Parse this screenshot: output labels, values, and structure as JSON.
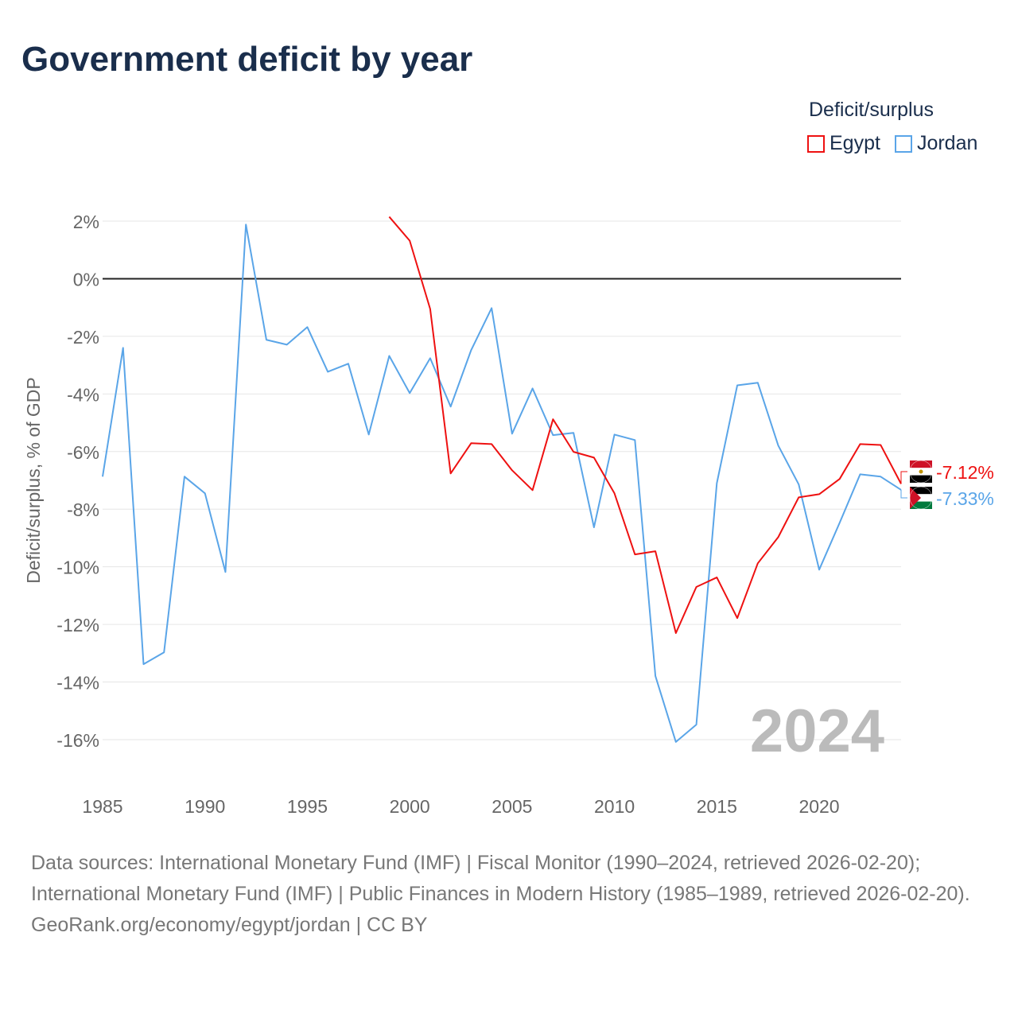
{
  "chart_data": {
    "type": "line",
    "title": "Government deficit by year",
    "ylabel": "Deficit/surplus, % of GDP",
    "xlabel": "",
    "ylim": [
      -16,
      2
    ],
    "xlim": [
      1985,
      2024
    ],
    "yticks": [
      2,
      0,
      -2,
      -4,
      -6,
      -8,
      -10,
      -12,
      -14,
      -16
    ],
    "ytick_labels": [
      "2%",
      "0%",
      "-2%",
      "-4%",
      "-6%",
      "-8%",
      "-10%",
      "-12%",
      "-14%",
      "-16%"
    ],
    "xticks": [
      1985,
      1990,
      1995,
      2000,
      2005,
      2010,
      2015,
      2020
    ],
    "xtick_labels": [
      "1985",
      "1990",
      "1995",
      "2000",
      "2005",
      "2010",
      "2015",
      "2020"
    ],
    "legend_title": "Deficit/surplus",
    "legend_placement": "top-right",
    "year_watermark": "2024",
    "series": [
      {
        "name": "Egypt",
        "color": "#ee1111",
        "end_label": "-7.12%",
        "x": [
          1999,
          2000,
          2001,
          2002,
          2003,
          2004,
          2005,
          2006,
          2007,
          2008,
          2009,
          2010,
          2011,
          2012,
          2013,
          2014,
          2015,
          2016,
          2017,
          2018,
          2019,
          2020,
          2021,
          2022,
          2023,
          2024
        ],
        "values": [
          2.15,
          1.32,
          -1.05,
          -6.76,
          -5.71,
          -5.74,
          -6.65,
          -7.34,
          -4.88,
          -6.01,
          -6.21,
          -7.45,
          -9.57,
          -9.46,
          -12.3,
          -10.7,
          -10.37,
          -11.78,
          -9.88,
          -8.97,
          -7.59,
          -7.48,
          -6.95,
          -5.74,
          -5.77,
          -7.12
        ]
      },
      {
        "name": "Jordan",
        "color": "#5aa5e8",
        "end_label": "-7.33%",
        "x": [
          1985,
          1986,
          1987,
          1988,
          1989,
          1990,
          1991,
          1992,
          1993,
          1994,
          1995,
          1996,
          1997,
          1998,
          1999,
          2000,
          2001,
          2002,
          2003,
          2004,
          2005,
          2006,
          2007,
          2008,
          2009,
          2010,
          2011,
          2012,
          2013,
          2014,
          2015,
          2016,
          2017,
          2018,
          2019,
          2020,
          2021,
          2022,
          2023,
          2024
        ],
        "values": [
          -6.87,
          -2.4,
          -13.38,
          -12.97,
          -6.87,
          -7.45,
          -10.18,
          1.88,
          -2.12,
          -2.29,
          -1.68,
          -3.23,
          -2.95,
          -5.41,
          -2.68,
          -3.97,
          -2.76,
          -4.44,
          -2.48,
          -1.02,
          -5.38,
          -3.81,
          -5.43,
          -5.35,
          -8.63,
          -5.41,
          -5.6,
          -13.79,
          -16.08,
          -15.48,
          -7.1,
          -3.7,
          -3.61,
          -5.79,
          -7.14,
          -10.1,
          -8.47,
          -6.79,
          -6.87,
          -7.33
        ]
      }
    ]
  },
  "footer": {
    "sources": "Data sources: International Monetary Fund (IMF) | Fiscal Monitor (1990–2024, retrieved 2026-02-20); International Monetary Fund (IMF) | Public Finances in Modern History (1985–1989, retrieved 2026-02-20).",
    "credit": "GeoRank.org/economy/egypt/jordan | CC BY"
  }
}
